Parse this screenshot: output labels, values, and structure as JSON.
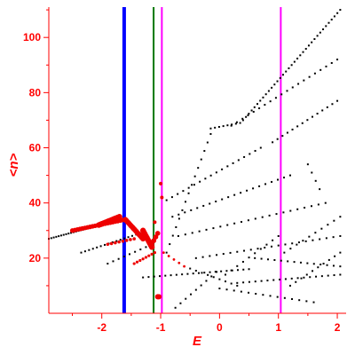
{
  "chart_data": {
    "type": "scatter",
    "title": "",
    "xlabel": "E",
    "ylabel": "<n>",
    "xlim": [
      -2.9,
      2.15
    ],
    "ylim": [
      0,
      111
    ],
    "x_ticks": [
      -2,
      -1,
      0,
      1,
      2
    ],
    "y_ticks": [
      20,
      40,
      60,
      80,
      100
    ],
    "x_tick_labels": [
      "-2",
      "-1",
      "0",
      "1",
      "2"
    ],
    "y_tick_labels": [
      "20",
      "40",
      "60",
      "80",
      "100"
    ],
    "grid": false,
    "legend": "none",
    "colors": {
      "axes": "#ff0000",
      "black_points": "#000000",
      "red_points": "#ee0000",
      "blue_line": "#0000ff",
      "green_line": "#007700",
      "magenta_line": "#ff00ff"
    },
    "vertical_lines": [
      {
        "x": -1.62,
        "color": "#0000ff"
      },
      {
        "x": -1.12,
        "color": "#007700"
      },
      {
        "x": -0.98,
        "color": "#ff00ff"
      },
      {
        "x": 1.04,
        "color": "#ff00ff"
      }
    ],
    "black_series": [
      {
        "x_start": -2.9,
        "y_start": 27,
        "x_end": -1.85,
        "y_end": 33,
        "count": 26
      },
      {
        "x_start": -2.35,
        "y_start": 22,
        "x_end": -1.35,
        "y_end": 29,
        "count": 16
      },
      {
        "x_start": -1.9,
        "y_start": 18,
        "x_end": -1.25,
        "y_end": 24,
        "count": 8
      },
      {
        "x_start": -1.3,
        "y_start": 13,
        "x_end": 0.5,
        "y_end": 16,
        "count": 20
      },
      {
        "x_start": -0.9,
        "y_start": 22,
        "x_end": -0.15,
        "y_end": 65,
        "count": 15
      },
      {
        "x_start": -0.15,
        "y_start": 67,
        "x_end": 0.35,
        "y_end": 69,
        "count": 8
      },
      {
        "x_start": 0.4,
        "y_start": 70,
        "x_end": 2.05,
        "y_end": 110,
        "count": 35
      },
      {
        "x_start": 0.2,
        "y_start": 68,
        "x_end": 2.0,
        "y_end": 92,
        "count": 20
      },
      {
        "x_start": 0.9,
        "y_start": 62,
        "x_end": 2.0,
        "y_end": 77,
        "count": 14
      },
      {
        "x_start": -0.9,
        "y_start": 41,
        "x_end": 0.7,
        "y_end": 60,
        "count": 18
      },
      {
        "x_start": -0.8,
        "y_start": 35,
        "x_end": 1.2,
        "y_end": 50,
        "count": 20
      },
      {
        "x_start": -0.7,
        "y_start": 28,
        "x_end": 1.8,
        "y_end": 40,
        "count": 22
      },
      {
        "x_start": -0.4,
        "y_start": 20,
        "x_end": 2.05,
        "y_end": 28,
        "count": 22
      },
      {
        "x_start": -0.6,
        "y_start": 17,
        "x_end": 0.3,
        "y_end": 10,
        "count": 10
      },
      {
        "x_start": -0.75,
        "y_start": 2,
        "x_end": -0.05,
        "y_end": 15,
        "count": 9
      },
      {
        "x_start": 0.3,
        "y_start": 11,
        "x_end": 2.05,
        "y_end": 14,
        "count": 18
      },
      {
        "x_start": 0.0,
        "y_start": 9,
        "x_end": 1.6,
        "y_end": 4,
        "count": 14
      },
      {
        "x_start": 0.1,
        "y_start": 14,
        "x_end": 1.0,
        "y_end": 28,
        "count": 10
      },
      {
        "x_start": 0.6,
        "y_start": 20,
        "x_end": 2.05,
        "y_end": 17,
        "count": 14
      },
      {
        "x_start": 1.1,
        "y_start": 22,
        "x_end": 2.05,
        "y_end": 35,
        "count": 10
      },
      {
        "x_start": 1.2,
        "y_start": 10,
        "x_end": 2.05,
        "y_end": 22,
        "count": 10
      },
      {
        "x_start": 1.5,
        "y_start": 54,
        "x_end": 1.7,
        "y_end": 45,
        "count": 4
      }
    ],
    "red_series": [
      {
        "x_start": -2.5,
        "y_start": 30,
        "x_end": -1.6,
        "y_end": 34,
        "count": 22,
        "size": 2.6
      },
      {
        "x_start": -2.05,
        "y_start": 32,
        "x_end": -1.7,
        "y_end": 35,
        "count": 14,
        "size": 3.2
      },
      {
        "x_start": -1.6,
        "y_start": 34,
        "x_end": -1.3,
        "y_end": 27,
        "count": 16,
        "size": 3.0
      },
      {
        "x_start": -1.3,
        "y_start": 30,
        "x_end": -1.15,
        "y_end": 24,
        "count": 10,
        "size": 3.2
      },
      {
        "x_start": -1.9,
        "y_start": 25,
        "x_end": -1.45,
        "y_end": 27,
        "count": 8,
        "size": 1.8
      },
      {
        "x_start": -1.45,
        "y_start": 18,
        "x_end": -1.1,
        "y_end": 22,
        "count": 8,
        "size": 1.6
      },
      {
        "x_start": -1.15,
        "y_start": 25,
        "x_end": -1.05,
        "y_end": 29,
        "count": 4,
        "size": 2.8
      },
      {
        "x_start": -1.0,
        "y_start": 47,
        "x_end": -0.98,
        "y_end": 42,
        "count": 2,
        "size": 2.0
      },
      {
        "x_start": -1.1,
        "y_start": 33,
        "x_end": -1.1,
        "y_end": 33,
        "count": 1,
        "size": 2.0
      },
      {
        "x_start": -1.05,
        "y_start": 6,
        "x_end": -1.03,
        "y_end": 6,
        "count": 2,
        "size": 3.0
      },
      {
        "x_start": -0.95,
        "y_start": 22,
        "x_end": -0.6,
        "y_end": 17,
        "count": 5,
        "size": 1.4
      }
    ]
  }
}
